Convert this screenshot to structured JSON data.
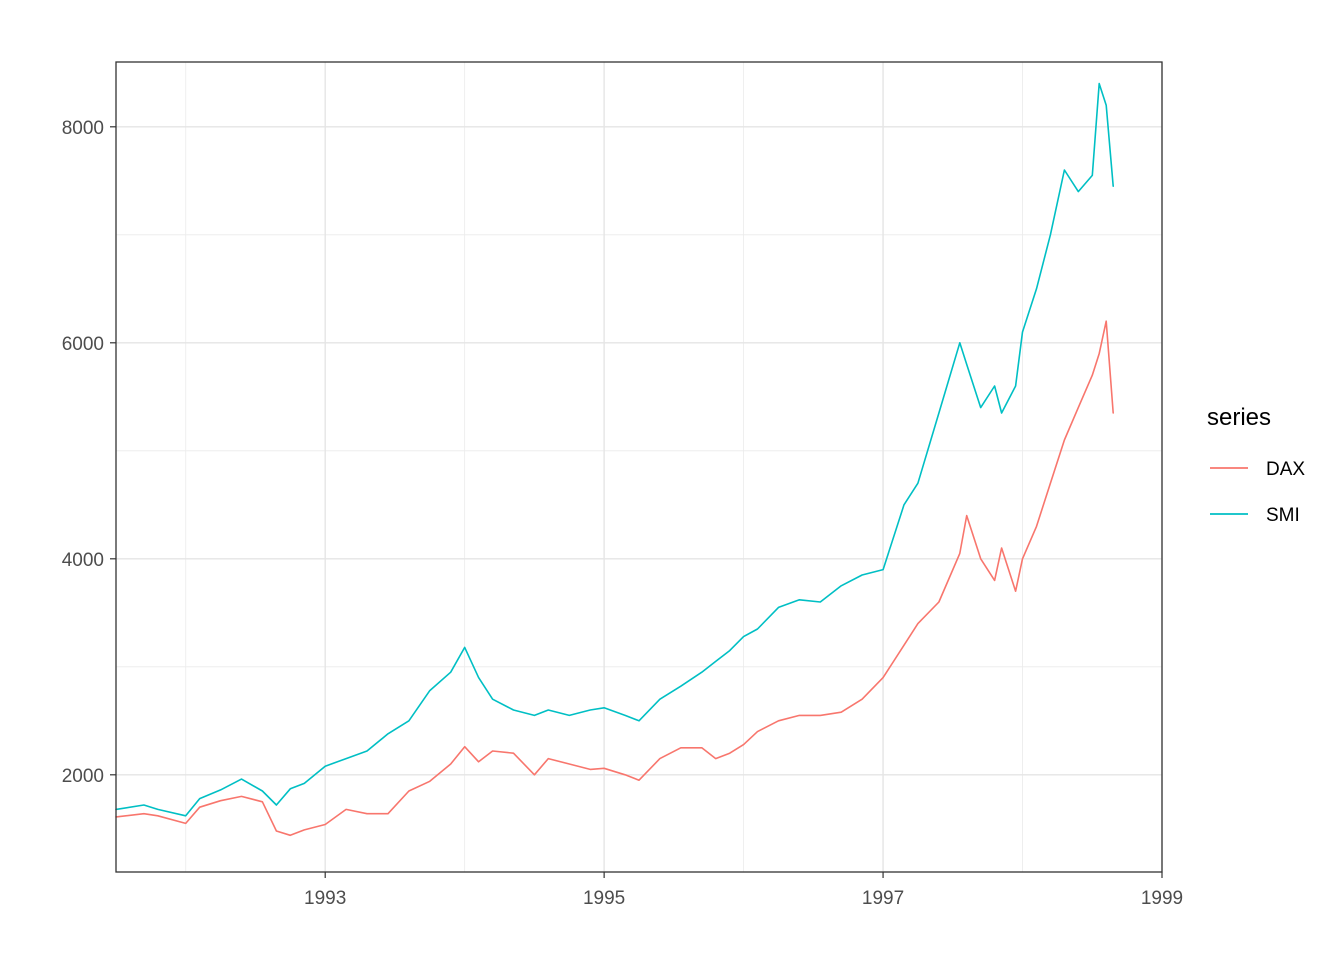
{
  "chart_data": {
    "type": "line",
    "title": "",
    "xlabel": "",
    "ylabel": "",
    "xlim": [
      1991.5,
      1999.0
    ],
    "ylim": [
      1100,
      8600
    ],
    "x_ticks": [
      "1993",
      "1995",
      "1997",
      "1999"
    ],
    "y_ticks": [
      "2000",
      "4000",
      "6000",
      "8000"
    ],
    "grid": true,
    "legend": {
      "title": "series",
      "position": "right"
    },
    "series": [
      {
        "name": "DAX",
        "color": "#F8766D",
        "x": [
          1991.5,
          1991.7,
          1991.8,
          1992.0,
          1992.1,
          1992.25,
          1992.4,
          1992.55,
          1992.65,
          1992.75,
          1992.85,
          1993.0,
          1993.15,
          1993.3,
          1993.45,
          1993.6,
          1993.75,
          1993.9,
          1994.0,
          1994.1,
          1994.2,
          1994.35,
          1994.5,
          1994.6,
          1994.75,
          1994.9,
          1995.0,
          1995.15,
          1995.25,
          1995.4,
          1995.55,
          1995.7,
          1995.8,
          1995.9,
          1996.0,
          1996.1,
          1996.25,
          1996.4,
          1996.55,
          1996.7,
          1996.85,
          1997.0,
          1997.15,
          1997.25,
          1997.4,
          1997.55,
          1997.6,
          1997.7,
          1997.8,
          1997.85,
          1997.95,
          1998.0,
          1998.1,
          1998.2,
          1998.3,
          1998.4,
          1998.5,
          1998.55,
          1998.6,
          1998.65
        ],
        "values": [
          1610,
          1640,
          1620,
          1550,
          1700,
          1760,
          1800,
          1750,
          1480,
          1440,
          1490,
          1540,
          1680,
          1640,
          1640,
          1850,
          1940,
          2100,
          2260,
          2120,
          2220,
          2200,
          2000,
          2150,
          2100,
          2050,
          2060,
          2000,
          1950,
          2150,
          2250,
          2250,
          2150,
          2200,
          2280,
          2400,
          2500,
          2550,
          2550,
          2580,
          2700,
          2900,
          3200,
          3400,
          3600,
          4050,
          4400,
          4000,
          3800,
          4100,
          3700,
          4000,
          4300,
          4700,
          5100,
          5400,
          5700,
          5900,
          6200,
          5350
        ]
      },
      {
        "name": "SMI",
        "color": "#00BFC4",
        "x": [
          1991.5,
          1991.7,
          1991.8,
          1992.0,
          1992.1,
          1992.25,
          1992.4,
          1992.55,
          1992.65,
          1992.75,
          1992.85,
          1993.0,
          1993.15,
          1993.3,
          1993.45,
          1993.6,
          1993.75,
          1993.9,
          1994.0,
          1994.1,
          1994.2,
          1994.35,
          1994.5,
          1994.6,
          1994.75,
          1994.9,
          1995.0,
          1995.15,
          1995.25,
          1995.4,
          1995.55,
          1995.7,
          1995.8,
          1995.9,
          1996.0,
          1996.1,
          1996.25,
          1996.4,
          1996.55,
          1996.7,
          1996.85,
          1997.0,
          1997.15,
          1997.25,
          1997.4,
          1997.55,
          1997.6,
          1997.7,
          1997.8,
          1997.85,
          1997.95,
          1998.0,
          1998.1,
          1998.2,
          1998.3,
          1998.4,
          1998.5,
          1998.55,
          1998.6,
          1998.65
        ],
        "values": [
          1680,
          1720,
          1680,
          1620,
          1780,
          1860,
          1960,
          1850,
          1720,
          1870,
          1920,
          2080,
          2150,
          2220,
          2380,
          2500,
          2780,
          2950,
          3180,
          2900,
          2700,
          2600,
          2550,
          2600,
          2550,
          2600,
          2620,
          2550,
          2500,
          2700,
          2820,
          2950,
          3050,
          3150,
          3280,
          3350,
          3550,
          3620,
          3600,
          3750,
          3850,
          3900,
          4500,
          4700,
          5350,
          6000,
          5800,
          5400,
          5600,
          5350,
          5600,
          6100,
          6500,
          7000,
          7600,
          7400,
          7550,
          8400,
          8200,
          7450
        ]
      }
    ]
  }
}
